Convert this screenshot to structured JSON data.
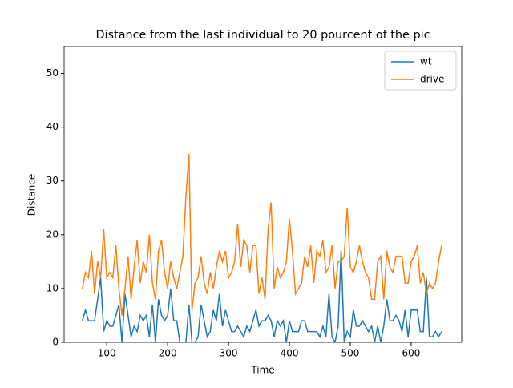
{
  "chart_data": {
    "type": "line",
    "title": "Distance from the last individual to 20 pourcent of the pic",
    "xlabel": "Time",
    "ylabel": "Distance",
    "x": [
      60,
      65,
      70,
      75,
      80,
      85,
      90,
      95,
      100,
      105,
      110,
      115,
      120,
      125,
      130,
      135,
      140,
      145,
      150,
      155,
      160,
      165,
      170,
      175,
      180,
      185,
      190,
      195,
      200,
      205,
      210,
      215,
      220,
      225,
      230,
      235,
      240,
      245,
      250,
      255,
      260,
      265,
      270,
      275,
      280,
      285,
      290,
      295,
      300,
      305,
      310,
      315,
      320,
      325,
      330,
      335,
      340,
      345,
      350,
      355,
      360,
      365,
      370,
      375,
      380,
      385,
      390,
      395,
      400,
      405,
      410,
      415,
      420,
      425,
      430,
      435,
      440,
      445,
      450,
      455,
      460,
      465,
      470,
      475,
      480,
      485,
      490,
      495,
      500,
      505,
      510,
      515,
      520,
      525,
      530,
      535,
      540,
      545,
      550,
      555,
      560,
      565,
      570,
      575,
      580,
      585,
      590,
      595,
      600,
      605,
      610,
      615,
      620,
      625,
      630,
      635,
      640,
      645,
      650
    ],
    "series": [
      {
        "name": "wt",
        "color": "#1f77b4",
        "values": [
          4,
          6,
          4,
          4,
          4,
          8,
          12,
          2,
          4,
          3,
          3,
          5,
          7,
          0,
          9,
          5,
          1,
          3,
          2,
          5,
          4,
          5,
          1,
          7,
          0,
          8,
          5,
          4,
          5,
          10,
          4,
          4,
          0,
          0,
          0,
          7,
          0,
          0,
          1,
          7,
          4,
          1,
          2,
          6,
          4,
          9,
          3,
          6,
          4,
          2,
          2,
          3,
          2,
          1,
          3,
          2,
          4,
          6,
          3,
          4,
          4,
          5,
          4,
          1,
          4,
          3,
          4,
          0,
          4,
          2,
          2,
          2,
          4,
          4,
          2,
          2,
          2,
          2,
          1,
          3,
          1,
          9,
          1,
          0,
          3,
          17,
          0,
          2,
          1,
          6,
          3,
          3,
          4,
          3,
          2,
          3,
          0,
          3,
          0,
          3,
          8,
          4,
          4,
          5,
          4,
          2,
          6,
          1,
          6,
          6,
          6,
          2,
          2,
          12,
          1,
          1,
          2,
          1,
          2
        ]
      },
      {
        "name": "drive",
        "color": "#ff7f0e",
        "values": [
          10,
          13,
          12,
          17,
          9,
          15,
          12,
          21,
          12,
          13,
          12,
          18,
          10,
          5,
          10,
          16,
          8,
          14,
          19,
          11,
          15,
          13,
          20,
          11,
          8,
          17,
          19,
          13,
          10,
          15,
          12,
          10,
          13,
          16,
          27,
          35,
          6,
          11,
          12,
          16,
          11,
          9,
          13,
          10,
          14,
          17,
          15,
          17,
          12,
          13,
          15,
          22,
          14,
          19,
          18,
          13,
          18,
          18,
          9,
          12,
          8,
          21,
          26,
          10,
          14,
          12,
          13,
          15,
          23,
          17,
          9,
          10,
          11,
          16,
          14,
          18,
          11,
          17,
          16,
          19,
          13,
          14,
          18,
          10,
          15,
          15,
          16,
          25,
          14,
          13,
          15,
          18,
          15,
          13,
          12,
          8,
          8,
          15,
          16,
          8,
          17,
          14,
          13,
          16,
          16,
          16,
          11,
          11,
          15,
          16,
          18,
          11,
          13,
          9,
          11,
          10,
          11,
          15,
          18
        ]
      }
    ],
    "xlim": [
      30,
      683
    ],
    "ylim": [
      0,
      55
    ],
    "xticks": [
      100,
      200,
      300,
      400,
      500,
      600
    ],
    "yticks": [
      0,
      10,
      20,
      30,
      40,
      50
    ],
    "legend": "upper right"
  }
}
